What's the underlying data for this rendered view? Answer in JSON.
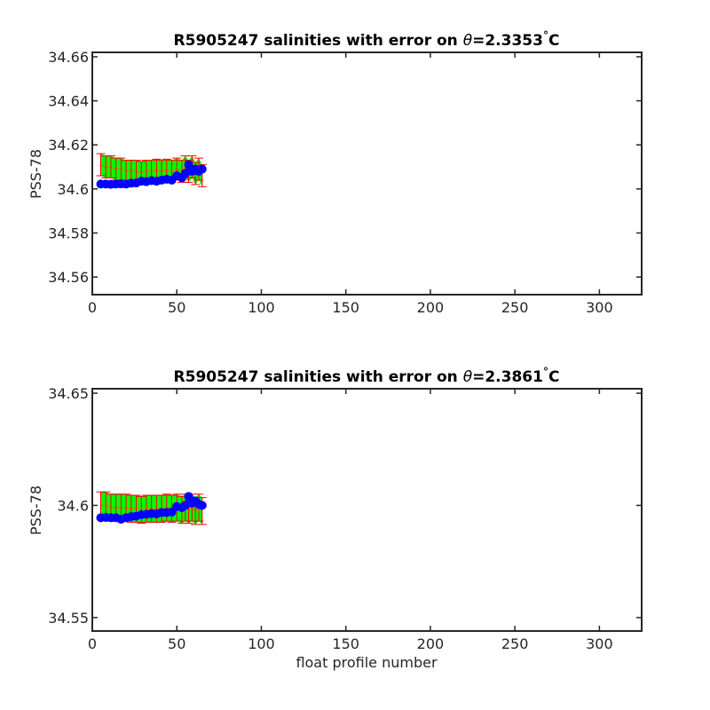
{
  "chart_data": [
    {
      "type": "scatter",
      "title": "R5905247 salinities with error on θ=2.3353°C",
      "title_parts": {
        "prefix": "R5905247 salinities with error on ",
        "symbol": "θ",
        "value": "=2.3353",
        "degree": "°",
        "unit": "C"
      },
      "xlabel": "",
      "ylabel": "PSS-78",
      "xlim": [
        0,
        325
      ],
      "ylim": [
        34.552,
        34.662
      ],
      "xticks": [
        0,
        50,
        100,
        150,
        200,
        250,
        300
      ],
      "xtick_labels": [
        "0",
        "50",
        "100",
        "150",
        "200",
        "250",
        "300"
      ],
      "yticks": [
        34.56,
        34.58,
        34.6,
        34.62,
        34.64,
        34.66
      ],
      "ytick_labels": [
        "34.56",
        "34.58",
        "34.6",
        "34.62",
        "34.64",
        "34.66"
      ],
      "colors": {
        "fill": "#00ff00",
        "mapped_line": "#c87d00",
        "errorbar": "#ff0000",
        "points": "#0000ff"
      },
      "series": [
        {
          "x": [
            5,
            8,
            11,
            14,
            17,
            20,
            23,
            26,
            29,
            32,
            35,
            38,
            41,
            44,
            47,
            50,
            53,
            55,
            57,
            59,
            61,
            63,
            65
          ],
          "mapped_salinity": [
            34.611,
            34.61,
            34.61,
            34.609,
            34.609,
            34.608,
            34.608,
            34.608,
            34.6075,
            34.608,
            34.608,
            34.6085,
            34.608,
            34.6085,
            34.608,
            34.609,
            34.608,
            34.61,
            34.608,
            34.61,
            34.607,
            34.609,
            34.606
          ],
          "mapped_error": [
            0.005,
            0.005,
            0.005,
            0.005,
            0.005,
            0.005,
            0.005,
            0.005,
            0.005,
            0.005,
            0.005,
            0.005,
            0.005,
            0.005,
            0.005,
            0.005,
            0.005,
            0.005,
            0.005,
            0.005,
            0.005,
            0.005,
            0.005
          ],
          "float_salinity": [
            34.6022,
            34.6022,
            34.6021,
            34.6022,
            34.6023,
            34.6022,
            34.6026,
            34.6027,
            34.6035,
            34.6033,
            34.6038,
            34.6035,
            34.604,
            34.6044,
            34.604,
            34.606,
            34.605,
            34.607,
            34.611,
            34.608,
            34.609,
            34.608,
            34.609
          ]
        }
      ]
    },
    {
      "type": "scatter",
      "title": "R5905247 salinities with error on θ=2.3861°C",
      "title_parts": {
        "prefix": "R5905247 salinities with error on ",
        "symbol": "θ",
        "value": "=2.3861",
        "degree": "°",
        "unit": "C"
      },
      "xlabel": "float profile number",
      "ylabel": "PSS-78",
      "xlim": [
        0,
        325
      ],
      "ylim": [
        34.544,
        34.652
      ],
      "xticks": [
        0,
        50,
        100,
        150,
        200,
        250,
        300
      ],
      "xtick_labels": [
        "0",
        "50",
        "100",
        "150",
        "200",
        "250",
        "300"
      ],
      "yticks": [
        34.55,
        34.6,
        34.65
      ],
      "ytick_labels": [
        "34.55",
        "34.6",
        "34.65"
      ],
      "colors": {
        "fill": "#00ff00",
        "mapped_line": "#c87d00",
        "errorbar": "#ff0000",
        "points": "#0000ff"
      },
      "series": [
        {
          "x": [
            5,
            8,
            11,
            14,
            17,
            20,
            23,
            26,
            29,
            32,
            35,
            38,
            41,
            44,
            47,
            50,
            53,
            55,
            57,
            59,
            61,
            63,
            65
          ],
          "mapped_salinity": [
            34.6,
            34.6,
            34.599,
            34.599,
            34.599,
            34.599,
            34.5985,
            34.5985,
            34.598,
            34.5985,
            34.5985,
            34.5985,
            34.5985,
            34.599,
            34.5985,
            34.599,
            34.598,
            34.599,
            34.598,
            34.599,
            34.5975,
            34.599,
            34.5975
          ],
          "mapped_error": [
            0.006,
            0.006,
            0.006,
            0.006,
            0.006,
            0.006,
            0.006,
            0.006,
            0.006,
            0.006,
            0.006,
            0.006,
            0.006,
            0.006,
            0.006,
            0.006,
            0.006,
            0.006,
            0.006,
            0.006,
            0.006,
            0.006,
            0.006
          ],
          "float_salinity": [
            34.5945,
            34.5946,
            34.5945,
            34.5945,
            34.5938,
            34.5945,
            34.595,
            34.5952,
            34.5958,
            34.596,
            34.5963,
            34.5962,
            34.5968,
            34.5968,
            34.597,
            34.5995,
            34.599,
            34.6,
            34.604,
            34.601,
            34.602,
            34.6005,
            34.6
          ]
        }
      ]
    }
  ]
}
